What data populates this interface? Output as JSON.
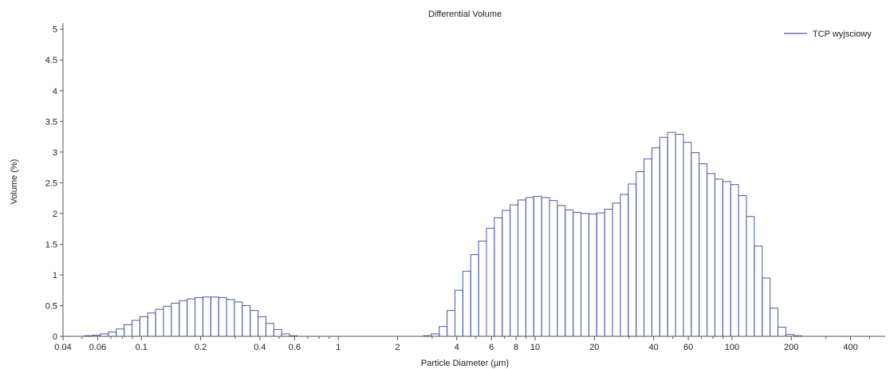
{
  "chart_data": {
    "type": "bar",
    "title": "Differential Volume",
    "xlabel": "Particle Diameter (µm)",
    "ylabel": "Volume (%)",
    "x_scale": "log",
    "xlim": [
      0.04,
      600
    ],
    "ylim": [
      0,
      5.1
    ],
    "x_ticks": [
      {
        "value": 0.04,
        "label": "0.04"
      },
      {
        "value": 0.06,
        "label": "0.06"
      },
      {
        "value": 0.1,
        "label": "0.1"
      },
      {
        "value": 0.2,
        "label": "0.2"
      },
      {
        "value": 0.4,
        "label": "0.4"
      },
      {
        "value": 0.6,
        "label": "0.6"
      },
      {
        "value": 1,
        "label": "1"
      },
      {
        "value": 2,
        "label": "2"
      },
      {
        "value": 4,
        "label": "4"
      },
      {
        "value": 6,
        "label": "6"
      },
      {
        "value": 8,
        "label": "8"
      },
      {
        "value": 10,
        "label": "10"
      },
      {
        "value": 20,
        "label": "20"
      },
      {
        "value": 40,
        "label": "40"
      },
      {
        "value": 60,
        "label": "60"
      },
      {
        "value": 100,
        "label": "100"
      },
      {
        "value": 200,
        "label": "200"
      },
      {
        "value": 400,
        "label": "400"
      }
    ],
    "y_ticks": [
      {
        "value": 0,
        "label": "0"
      },
      {
        "value": 0.5,
        "label": "0.5"
      },
      {
        "value": 1,
        "label": "1"
      },
      {
        "value": 1.5,
        "label": "1.5"
      },
      {
        "value": 2,
        "label": "2"
      },
      {
        "value": 2.5,
        "label": "2.5"
      },
      {
        "value": 3,
        "label": "3"
      },
      {
        "value": 3.5,
        "label": "3.5"
      },
      {
        "value": 4,
        "label": "4"
      },
      {
        "value": 4.5,
        "label": "4.5"
      },
      {
        "value": 5,
        "label": "5"
      }
    ],
    "grid": false,
    "legend_position": "top-right",
    "colors": {
      "series": "#4a5aa8",
      "axis": "#555555",
      "background": "#ffffff"
    },
    "series": [
      {
        "name": "TCP wyjsciowy",
        "bin_start_um": 0.0429,
        "bin_ratio": 1.0965,
        "values": [
          0.0,
          0.0,
          0.01,
          0.02,
          0.04,
          0.07,
          0.12,
          0.19,
          0.26,
          0.32,
          0.38,
          0.44,
          0.49,
          0.54,
          0.58,
          0.61,
          0.63,
          0.64,
          0.64,
          0.63,
          0.6,
          0.56,
          0.5,
          0.42,
          0.32,
          0.21,
          0.11,
          0.04,
          0.01,
          0.0,
          0.0,
          0.0,
          0.0,
          0.0,
          0.0,
          0.0,
          0.0,
          0.0,
          0.0,
          0.0,
          0.0,
          0.0,
          0.0,
          0.0,
          0.0,
          0.01,
          0.04,
          0.16,
          0.42,
          0.75,
          1.06,
          1.33,
          1.55,
          1.76,
          1.93,
          2.05,
          2.14,
          2.22,
          2.26,
          2.28,
          2.26,
          2.21,
          2.13,
          2.06,
          2.02,
          2.0,
          1.99,
          2.01,
          2.07,
          2.17,
          2.31,
          2.48,
          2.68,
          2.89,
          3.07,
          3.24,
          3.32,
          3.29,
          3.16,
          2.99,
          2.81,
          2.65,
          2.56,
          2.52,
          2.47,
          2.29,
          1.95,
          1.47,
          0.95,
          0.46,
          0.15,
          0.03,
          0.01
        ]
      }
    ]
  }
}
